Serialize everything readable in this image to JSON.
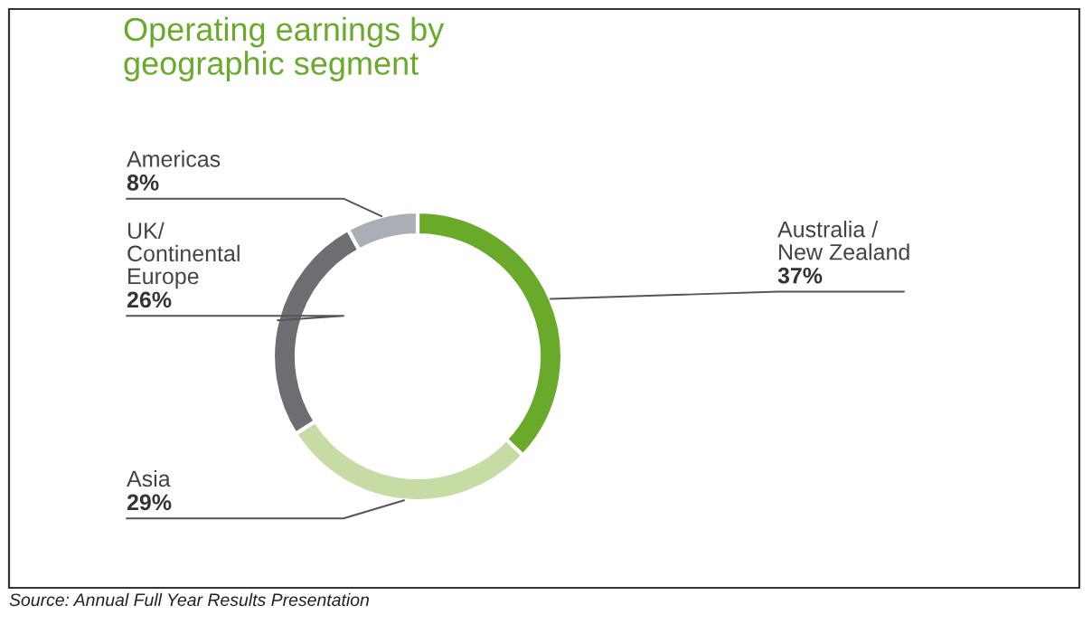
{
  "chart_data": {
    "type": "donut",
    "title": "Operating earnings by\ngeographic segment",
    "categories": [
      "Australia /\nNew Zealand",
      "Asia",
      "UK/\nContinental\nEurope",
      "Americas"
    ],
    "values": [
      37,
      29,
      26,
      8
    ],
    "value_labels": [
      "37%",
      "29%",
      "26%",
      "8%"
    ],
    "colors": [
      "#6aaa2a",
      "#c6dca4",
      "#6d6e71",
      "#a9afb5"
    ],
    "legend": false,
    "annotations": [
      "Source: Annual Full Year Results Presentation"
    ]
  }
}
